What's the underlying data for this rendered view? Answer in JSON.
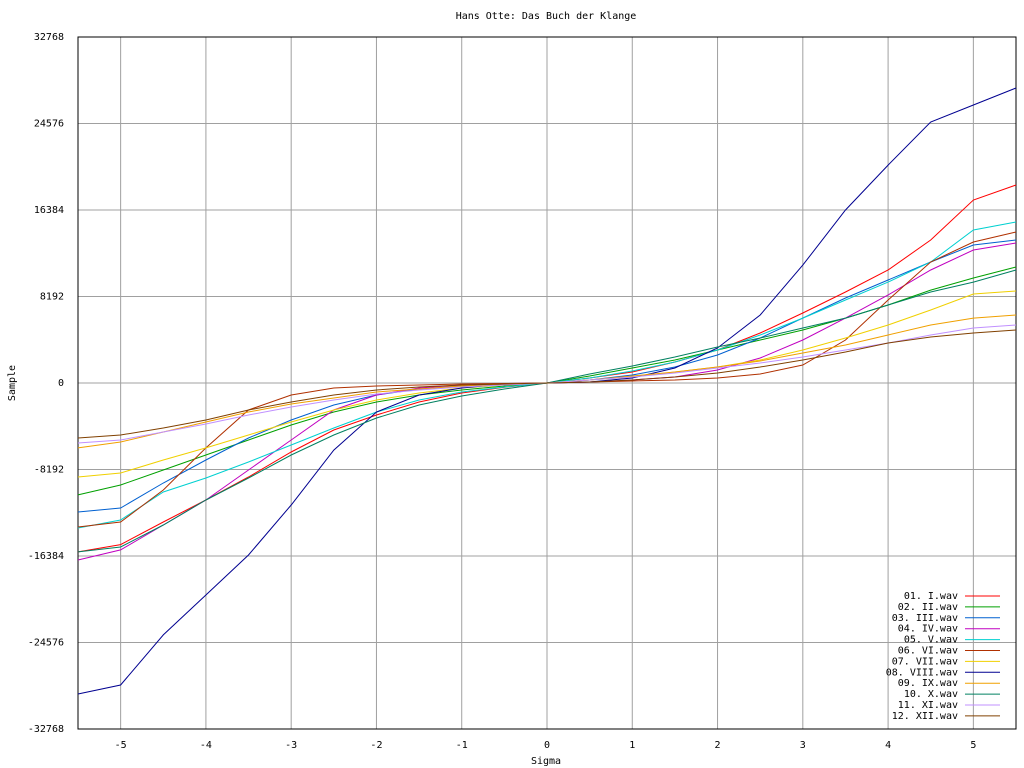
{
  "chart_data": {
    "type": "line",
    "title": "Hans Otte: Das Buch der Klange",
    "x_label": "Sigma",
    "y_label": "Sample",
    "x": [
      -5.5,
      -5,
      -4.5,
      -4,
      -3.5,
      -3,
      -2.5,
      -2,
      -1.5,
      -1,
      -0.5,
      0,
      0.5,
      1,
      1.5,
      2,
      2.5,
      3,
      3.5,
      4,
      4.5,
      5,
      5.5
    ],
    "xlim": [
      -5.5,
      5.5
    ],
    "ylim": [
      -32768,
      32768
    ],
    "xticks": [
      -5,
      -4,
      -3,
      -2,
      -1,
      0,
      1,
      2,
      3,
      4,
      5
    ],
    "yticks": [
      -32768,
      -24576,
      -16384,
      -8192,
      0,
      8192,
      16384,
      24576,
      32768
    ],
    "grid": true,
    "legend": "bottom-right",
    "series": [
      {
        "name": "01. I.wav",
        "color": "#ff0000",
        "values": [
          -16000,
          -15300,
          -13160,
          -11080,
          -8900,
          -6530,
          -4450,
          -3030,
          -1800,
          -950,
          -400,
          0,
          470,
          1040,
          1990,
          3125,
          4735,
          6630,
          8620,
          10700,
          13540,
          17330,
          18750
        ]
      },
      {
        "name": "02. II.wav",
        "color": "#00a000",
        "values": [
          -10600,
          -9660,
          -8240,
          -6820,
          -5400,
          -3980,
          -2750,
          -1800,
          -1140,
          -660,
          -280,
          0,
          660,
          1420,
          2180,
          3125,
          4070,
          5020,
          6150,
          7390,
          8800,
          9940,
          10990
        ]
      },
      {
        "name": "03. III.wav",
        "color": "#0060d0",
        "values": [
          -12220,
          -11840,
          -9470,
          -7290,
          -5210,
          -3500,
          -2080,
          -1140,
          -570,
          -280,
          -90,
          0,
          280,
          760,
          1515,
          2650,
          4260,
          6150,
          8050,
          9750,
          11460,
          13070,
          13540
        ]
      },
      {
        "name": "04. IV.wav",
        "color": "#c000c0",
        "values": [
          -16760,
          -15810,
          -13450,
          -11080,
          -8240,
          -5400,
          -2560,
          -1140,
          -470,
          -190,
          -50,
          0,
          90,
          280,
          570,
          1230,
          2370,
          4070,
          6150,
          8330,
          10700,
          12600,
          13260
        ]
      },
      {
        "name": "05. V.wav",
        "color": "#00d0d0",
        "values": [
          -13730,
          -12970,
          -10320,
          -9000,
          -7480,
          -5870,
          -4260,
          -2750,
          -1610,
          -850,
          -380,
          0,
          470,
          1140,
          1990,
          3125,
          4550,
          6150,
          7860,
          9560,
          11460,
          14490,
          15250
        ]
      },
      {
        "name": "06. VI.wav",
        "color": "#b03000",
        "values": [
          -13640,
          -13160,
          -10130,
          -6150,
          -2560,
          -1140,
          -470,
          -280,
          -190,
          -90,
          -50,
          0,
          90,
          190,
          280,
          470,
          850,
          1700,
          4070,
          7860,
          11460,
          13350,
          14300
        ]
      },
      {
        "name": "07. VII.wav",
        "color": "#f0d000",
        "values": [
          -8900,
          -8520,
          -7290,
          -6150,
          -4920,
          -3690,
          -2560,
          -1610,
          -950,
          -470,
          -190,
          0,
          280,
          570,
          1040,
          1515,
          2180,
          3125,
          4260,
          5490,
          6910,
          8430,
          8710
        ]
      },
      {
        "name": "08. VIII.wav",
        "color": "#000090",
        "values": [
          -29450,
          -28600,
          -23860,
          -20080,
          -16290,
          -11550,
          -6350,
          -2750,
          -1140,
          -470,
          -90,
          0,
          90,
          470,
          1420,
          3310,
          6440,
          11170,
          16380,
          20640,
          24720,
          26330,
          27940
        ]
      },
      {
        "name": "09. IX.wav",
        "color": "#f0a000",
        "values": [
          -6150,
          -5590,
          -4640,
          -3690,
          -2750,
          -1990,
          -1420,
          -850,
          -570,
          -280,
          -90,
          0,
          280,
          660,
          1040,
          1515,
          2080,
          2840,
          3600,
          4550,
          5490,
          6150,
          6440
        ]
      },
      {
        "name": "10. X.wav",
        "color": "#008060",
        "values": [
          -16000,
          -15530,
          -13450,
          -11080,
          -9000,
          -6820,
          -4920,
          -3310,
          -2080,
          -1230,
          -570,
          0,
          850,
          1610,
          2460,
          3410,
          4260,
          5210,
          6150,
          7390,
          8620,
          9560,
          10700
        ]
      },
      {
        "name": "11. XI.wav",
        "color": "#c090ff",
        "values": [
          -5680,
          -5400,
          -4640,
          -3880,
          -3030,
          -2270,
          -1610,
          -1040,
          -660,
          -380,
          -190,
          0,
          280,
          570,
          950,
          1420,
          1890,
          2460,
          3125,
          3790,
          4550,
          5210,
          5490
        ]
      },
      {
        "name": "12. XII.wav",
        "color": "#804000",
        "values": [
          -5210,
          -4920,
          -4260,
          -3500,
          -2560,
          -1800,
          -1140,
          -660,
          -380,
          -190,
          -90,
          0,
          90,
          280,
          570,
          950,
          1515,
          2180,
          2940,
          3790,
          4360,
          4735,
          5020
        ]
      }
    ]
  }
}
